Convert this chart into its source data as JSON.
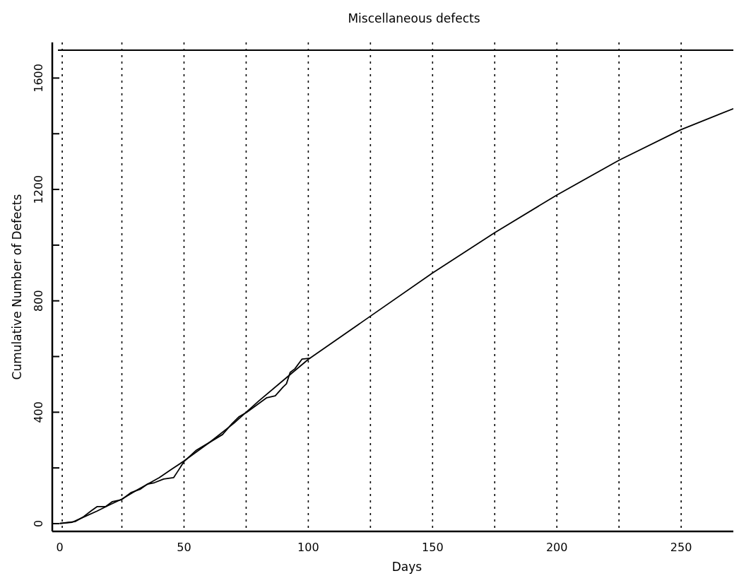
{
  "chart_data": {
    "type": "line",
    "title": "Miscellaneous defects",
    "xlabel": "Days",
    "ylabel": "Cumulative Number of Defects",
    "xlim": [
      -3,
      271
    ],
    "ylim": [
      -28,
      1728
    ],
    "xticks": [
      0,
      50,
      100,
      150,
      200,
      250
    ],
    "yticks": [
      0,
      {
        "value": 200,
        "label": null
      },
      400,
      {
        "value": 600,
        "label": null
      },
      800,
      {
        "value": 1000,
        "label": null
      },
      1200,
      {
        "value": 1400,
        "label": null
      },
      1600
    ],
    "series": [
      {
        "color": "#000000",
        "x": [
          0,
          6.1,
          9.3,
          12.7,
          15,
          18.4,
          21.2,
          24.9,
          28.8,
          32.5,
          35.3,
          38.1,
          41.8,
          45.8,
          47.5,
          50,
          55,
          60.7,
          65.5,
          69.2,
          72,
          75.4,
          79.7,
          83.3,
          86.7,
          89.8,
          91.2,
          92.7,
          94.6,
          97.5,
          100.8
        ],
        "values": [
          1,
          7,
          23,
          46,
          61,
          61,
          79,
          86,
          112,
          124,
          142,
          147,
          160,
          165,
          188,
          223,
          264,
          294,
          320,
          358,
          383,
          401,
          429,
          452,
          459,
          490,
          502,
          543,
          556,
          591,
          594
        ]
      },
      {
        "color": "#000000",
        "x": [
          0,
          5,
          10,
          15,
          20,
          25,
          30,
          35,
          40,
          45,
          50,
          60,
          70,
          75,
          80,
          90,
          100,
          125,
          150,
          175,
          200,
          225,
          250,
          271
        ],
        "values": [
          0,
          5,
          25,
          45,
          67,
          88,
          115,
          140,
          165,
          195,
          225,
          290,
          360,
          400,
          440,
          515,
          590,
          745,
          900,
          1045,
          1180,
          1305,
          1415,
          1490
        ]
      }
    ],
    "ref_lines": [
      {
        "axis": "y",
        "value": 1700,
        "line_style": "solid"
      },
      {
        "axis": "x",
        "value": 1,
        "line_style": "dotted"
      },
      {
        "axis": "x",
        "value": 25,
        "line_style": "dotted"
      },
      {
        "axis": "x",
        "value": 50,
        "line_style": "dotted"
      },
      {
        "axis": "x",
        "value": 75,
        "line_style": "dotted"
      },
      {
        "axis": "x",
        "value": 100,
        "line_style": "dotted"
      },
      {
        "axis": "x",
        "value": 125,
        "line_style": "dotted"
      },
      {
        "axis": "x",
        "value": 150,
        "line_style": "dotted"
      },
      {
        "axis": "x",
        "value": 175,
        "line_style": "dotted"
      },
      {
        "axis": "x",
        "value": 200,
        "line_style": "dotted"
      },
      {
        "axis": "x",
        "value": 225,
        "line_style": "dotted"
      },
      {
        "axis": "x",
        "value": 250,
        "line_style": "dotted"
      }
    ],
    "grid": false,
    "marker": "none",
    "line_style": "solid"
  }
}
